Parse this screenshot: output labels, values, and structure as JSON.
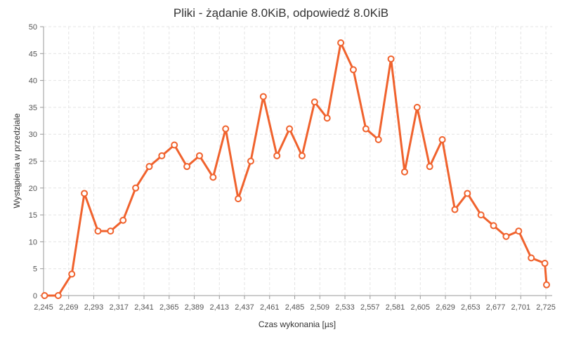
{
  "chart_data": {
    "type": "line",
    "title": "Pliki - żądanie 8.0KiB, odpowiedź 8.0KiB",
    "xlabel": "Czas wykonania [µs]",
    "ylabel": "Wystąpienia w przedziale",
    "ylim": [
      0,
      50
    ],
    "xlim": [
      2245,
      2731
    ],
    "y_ticks": [
      0,
      5,
      10,
      15,
      20,
      25,
      30,
      35,
      40,
      45,
      50
    ],
    "x_ticks": [
      2245,
      2269,
      2293,
      2317,
      2341,
      2365,
      2389,
      2413,
      2437,
      2461,
      2485,
      2509,
      2533,
      2557,
      2581,
      2605,
      2629,
      2653,
      2677,
      2701,
      2725
    ],
    "x_tick_labels": [
      "2,245",
      "2,269",
      "2,293",
      "2,317",
      "2,341",
      "2,365",
      "2,389",
      "2,413",
      "2,437",
      "2,461",
      "2,485",
      "2,509",
      "2,533",
      "2,557",
      "2,581",
      "2,605",
      "2,629",
      "2,653",
      "2,677",
      "2,701",
      "2,725"
    ],
    "grid": true,
    "legend": "none",
    "color": "#f0622d",
    "series": [
      {
        "x": [
          2246,
          2259,
          2272,
          2284,
          2297,
          2309,
          2321,
          2333,
          2346,
          2358,
          2370,
          2382,
          2394,
          2407,
          2419,
          2431,
          2443,
          2455,
          2468,
          2480,
          2492,
          2504,
          2516,
          2529,
          2541,
          2553,
          2565,
          2577,
          2590,
          2602,
          2614,
          2626,
          2638,
          2650,
          2663,
          2675,
          2687,
          2699,
          2711,
          2724,
          2736
        ],
        "y": [
          0,
          0,
          4,
          19,
          12,
          12,
          14,
          20,
          24,
          26,
          28,
          24,
          26,
          22,
          31,
          18,
          25,
          37,
          26,
          31,
          26,
          36,
          33,
          47,
          42,
          31,
          29,
          44,
          23,
          35,
          24,
          29,
          16,
          19,
          15,
          13,
          11,
          12,
          7,
          6,
          2
        ]
      }
    ]
  }
}
